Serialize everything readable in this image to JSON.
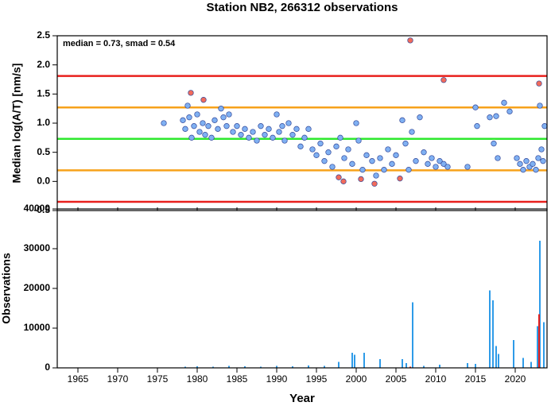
{
  "title": "Station NB2, 266312 observations",
  "chart_data": [
    {
      "type": "scatter",
      "ylabel": "Median log(A/T) [nm/s]",
      "annotation": "median = 0.73, smad = 0.54",
      "xlim": [
        1962.4,
        2024
      ],
      "ylim": [
        -0.5,
        2.5
      ],
      "yticks": [
        -0.5,
        {
          "value": 0,
          "label": "0.0"
        },
        0.5,
        {
          "value": 1,
          "label": "1.0"
        },
        1.5,
        {
          "value": 2,
          "label": "2.0"
        },
        2.5
      ],
      "lines": [
        {
          "value": 1.81,
          "color": "#e8201c"
        },
        {
          "value": 1.27,
          "color": "#f7a21b"
        },
        {
          "value": 0.73,
          "color": "#2ee82e"
        },
        {
          "value": 0.19,
          "color": "#f7a21b"
        },
        {
          "value": -0.35,
          "color": "#e8201c"
        }
      ],
      "series": [
        {
          "color": "#7fb0f2",
          "x": [
            1975.8,
            1978.2,
            1978.5,
            1978.8,
            1979.0,
            1979.3,
            1979.6,
            1980.0,
            1980.3,
            1980.7,
            1981.0,
            1981.4,
            1981.8,
            1982.2,
            1982.6,
            1983.0,
            1983.3,
            1983.7,
            1984.0,
            1984.5,
            1985.0,
            1985.5,
            1986.0,
            1986.5,
            1987.0,
            1987.5,
            1988.0,
            1988.5,
            1989.0,
            1989.5,
            1990.0,
            1990.3,
            1990.7,
            1991.0,
            1991.5,
            1992.0,
            1992.5,
            1993.0,
            1993.5,
            1994.0,
            1994.5,
            1995.0,
            1995.5,
            1996.0,
            1996.5,
            1997.0,
            1997.5,
            1998.0,
            1998.5,
            1999.0,
            1999.5,
            2000.0,
            2000.3,
            2000.8,
            2001.3,
            2002.0,
            2002.5,
            2003.0,
            2003.5,
            2004.0,
            2004.5,
            2005.0,
            2005.8,
            2006.2,
            2006.6,
            2007.0,
            2007.5,
            2008.0,
            2008.5,
            2009.0,
            2009.5,
            2010.0,
            2010.5,
            2011.0,
            2011.5,
            2014.0,
            2015.0,
            2015.2,
            2016.8,
            2017.3,
            2017.6,
            2017.8,
            2018.6,
            2019.3,
            2020.2,
            2020.6,
            2021.0,
            2021.4,
            2021.8,
            2022.2,
            2022.6,
            2022.9,
            2023.1,
            2023.3,
            2023.5,
            2023.7
          ],
          "values": [
            1.0,
            1.05,
            0.9,
            1.3,
            1.1,
            0.75,
            0.95,
            1.15,
            0.85,
            1.0,
            0.8,
            0.95,
            0.75,
            1.05,
            0.9,
            1.25,
            1.1,
            0.95,
            1.15,
            0.85,
            0.95,
            0.8,
            0.9,
            0.75,
            0.85,
            0.7,
            0.95,
            0.8,
            0.9,
            0.75,
            1.15,
            0.85,
            0.95,
            0.7,
            1.0,
            0.8,
            0.9,
            0.6,
            0.75,
            0.9,
            0.55,
            0.45,
            0.65,
            0.35,
            0.5,
            0.25,
            0.6,
            0.75,
            0.4,
            0.55,
            0.3,
            1.0,
            0.7,
            0.2,
            0.45,
            0.35,
            0.1,
            0.4,
            0.2,
            0.55,
            0.3,
            0.45,
            1.05,
            0.65,
            0.2,
            0.85,
            0.35,
            1.1,
            0.5,
            0.3,
            0.4,
            0.25,
            0.35,
            0.3,
            0.25,
            0.25,
            1.27,
            0.95,
            1.1,
            0.65,
            1.12,
            0.4,
            1.35,
            1.2,
            0.4,
            0.3,
            0.2,
            0.35,
            0.25,
            0.3,
            0.2,
            0.4,
            1.3,
            0.55,
            0.35,
            0.95
          ]
        },
        {
          "color": "#f26b5b",
          "x": [
            1979.2,
            1980.8,
            1997.8,
            1998.4,
            2000.6,
            2002.3,
            2005.5,
            2006.8,
            2011.0,
            2023.0
          ],
          "values": [
            1.52,
            1.4,
            0.07,
            0.0,
            0.04,
            -0.04,
            0.05,
            2.42,
            1.74,
            1.68
          ]
        }
      ]
    },
    {
      "type": "bar",
      "xlabel": "Year",
      "ylabel": "Observations",
      "xlim": [
        1962.4,
        2024
      ],
      "ylim": [
        0,
        40000
      ],
      "xticks": [
        1965,
        1970,
        1975,
        1980,
        1985,
        1990,
        1995,
        2000,
        2005,
        2010,
        2015,
        2020
      ],
      "yticks": [
        0,
        10000,
        20000,
        30000,
        40000
      ],
      "series": [
        {
          "color": "#2e9be8",
          "x": [
            1978.5,
            1980,
            1982,
            1984,
            1986,
            1988,
            1990,
            1992,
            1994,
            1996,
            1997.8,
            1999.5,
            1999.8,
            2001,
            2003,
            2005.8,
            2006.3,
            2007.1,
            2008.5,
            2010.5,
            2014,
            2015,
            2016.8,
            2017.2,
            2017.6,
            2017.9,
            2019.8,
            2021,
            2022,
            2022.8,
            2023.1,
            2023.6
          ],
          "values": [
            300,
            400,
            300,
            500,
            400,
            300,
            500,
            400,
            600,
            500,
            1500,
            3800,
            3300,
            3800,
            2200,
            2200,
            1200,
            16500,
            500,
            800,
            1200,
            1000,
            19500,
            17000,
            5500,
            3500,
            7000,
            2500,
            1500,
            10500,
            32000,
            11500
          ]
        },
        {
          "color": "#e8201c",
          "x": [
            2006.8,
            2023.0
          ],
          "values": [
            300,
            13500
          ]
        }
      ]
    }
  ]
}
